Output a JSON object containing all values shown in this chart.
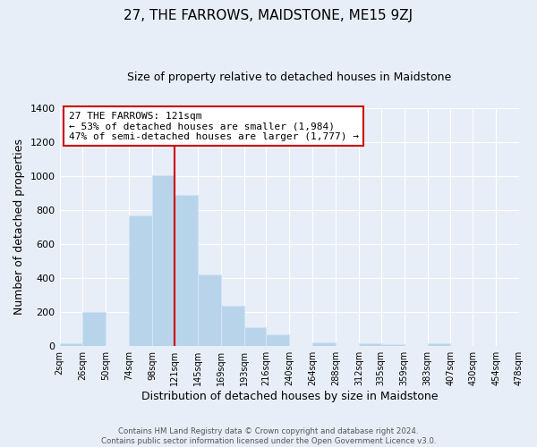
{
  "title": "27, THE FARROWS, MAIDSTONE, ME15 9ZJ",
  "subtitle": "Size of property relative to detached houses in Maidstone",
  "xlabel": "Distribution of detached houses by size in Maidstone",
  "ylabel": "Number of detached properties",
  "bar_edges": [
    2,
    26,
    50,
    74,
    98,
    121,
    145,
    169,
    193,
    216,
    240,
    264,
    288,
    312,
    335,
    359,
    383,
    407,
    430,
    454,
    478
  ],
  "bar_heights": [
    20,
    200,
    0,
    770,
    1005,
    890,
    420,
    240,
    110,
    70,
    0,
    25,
    0,
    15,
    10,
    0,
    15,
    0,
    0,
    0
  ],
  "tick_labels": [
    "2sqm",
    "26sqm",
    "50sqm",
    "74sqm",
    "98sqm",
    "121sqm",
    "145sqm",
    "169sqm",
    "193sqm",
    "216sqm",
    "240sqm",
    "264sqm",
    "288sqm",
    "312sqm",
    "335sqm",
    "359sqm",
    "383sqm",
    "407sqm",
    "430sqm",
    "454sqm",
    "478sqm"
  ],
  "bar_color": "#b8d4ea",
  "bar_edge_color": "#d0e4f4",
  "vline_x": 121,
  "vline_color": "#cc0000",
  "annotation_title": "27 THE FARROWS: 121sqm",
  "annotation_line1": "← 53% of detached houses are smaller (1,984)",
  "annotation_line2": "47% of semi-detached houses are larger (1,777) →",
  "annotation_box_facecolor": "#ffffff",
  "annotation_box_edgecolor": "#cc0000",
  "ylim": [
    0,
    1400
  ],
  "yticks": [
    0,
    200,
    400,
    600,
    800,
    1000,
    1200,
    1400
  ],
  "bg_color": "#e8eef8",
  "plot_bg_color": "#e8eef8",
  "grid_color": "#ffffff",
  "footer1": "Contains HM Land Registry data © Crown copyright and database right 2024.",
  "footer2": "Contains public sector information licensed under the Open Government Licence v3.0."
}
